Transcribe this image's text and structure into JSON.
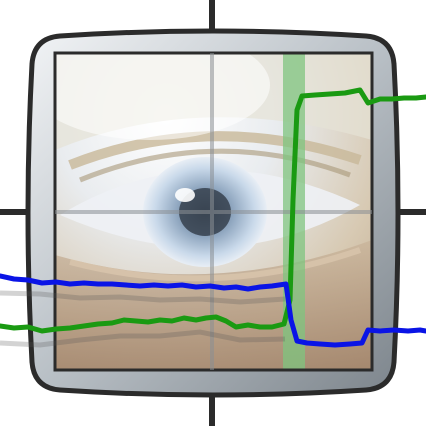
{
  "icon": {
    "name": "eye-monitor-graph-icon",
    "frame_color": "#2b2b2b",
    "crosshair_color": "#2b2b2b",
    "highlight_color": "#7fc47f",
    "series": [
      {
        "color": "#1a9a12",
        "label": ""
      },
      {
        "color": "#0a14e6",
        "label": ""
      }
    ]
  }
}
